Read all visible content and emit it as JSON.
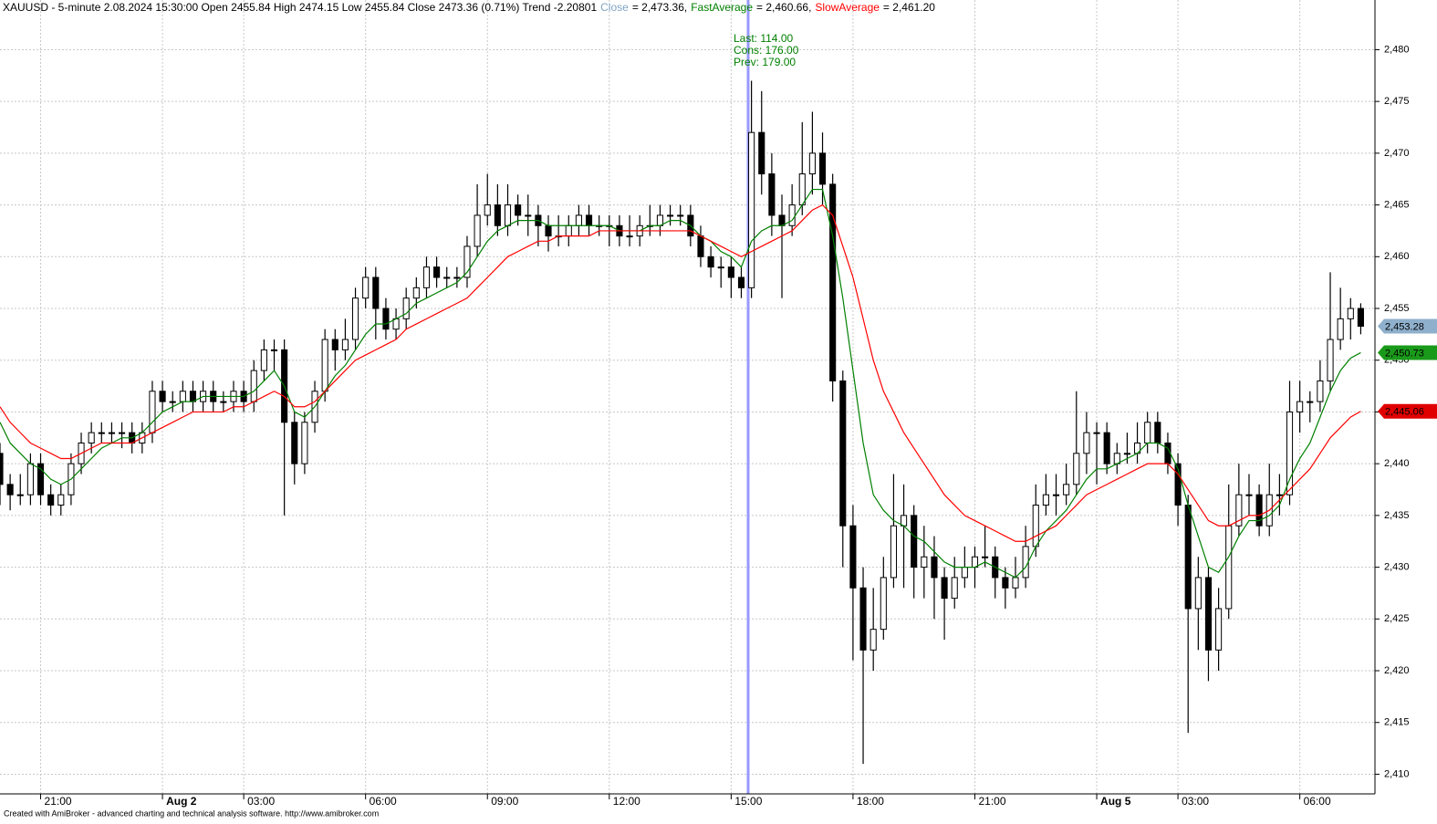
{
  "chart_data": {
    "type": "candlestick",
    "title": "XAUUSD - 5-minute 2.08.2024 15:30:00 Open 2455.84 High 2474.15 Low 2455.84 Close 2473.36 (0.71%) Trend -2.20801",
    "legend": [
      {
        "name": "Close",
        "text": "= 2,473.36,",
        "color": "#7fa4c4"
      },
      {
        "name": "FastAverage",
        "text": "= 2,460.66,",
        "color": "#008000"
      },
      {
        "name": "SlowAverage",
        "text": "= 2,461.20",
        "color": "#ff0000"
      }
    ],
    "annotation": [
      "Last: 114.00",
      "Cons: 176.00",
      "Prev: 179.00"
    ],
    "footer": "Created with AmiBroker - advanced charting and technical analysis software. http://www.amibroker.com",
    "xlim": [
      0,
      135.4
    ],
    "ylim": [
      2408.1,
      2484.8
    ],
    "xticks": [
      {
        "value": 4,
        "label": "21:00"
      },
      {
        "value": 16,
        "label": "Aug 2"
      },
      {
        "value": 24,
        "label": "03:00"
      },
      {
        "value": 36,
        "label": "06:00"
      },
      {
        "value": 48,
        "label": "09:00"
      },
      {
        "value": 60,
        "label": "12:00"
      },
      {
        "value": 72,
        "label": "15:00"
      },
      {
        "value": 84,
        "label": "18:00"
      },
      {
        "value": 96,
        "label": "21:00"
      },
      {
        "value": 108,
        "label": "Aug 5"
      },
      {
        "value": 116,
        "label": "03:00"
      },
      {
        "value": 128,
        "label": "06:00"
      }
    ],
    "yticks": [
      {
        "value": 2410,
        "label": "2,410"
      },
      {
        "value": 2415,
        "label": "2,415"
      },
      {
        "value": 2420,
        "label": "2,420"
      },
      {
        "value": 2425,
        "label": "2,425"
      },
      {
        "value": 2430,
        "label": "2,430"
      },
      {
        "value": 2435,
        "label": "2,435"
      },
      {
        "value": 2440,
        "label": "2,440"
      },
      {
        "value": 2445,
        "label": "2,445"
      },
      {
        "value": 2450,
        "label": "2,450"
      },
      {
        "value": 2455,
        "label": "2,455"
      },
      {
        "value": 2460,
        "label": "2,460"
      },
      {
        "value": 2465,
        "label": "2,465"
      },
      {
        "value": 2470,
        "label": "2,470"
      },
      {
        "value": 2475,
        "label": "2,475"
      },
      {
        "value": 2480,
        "label": "2,480"
      }
    ],
    "grid": true,
    "x": [
      0,
      1,
      2,
      3,
      4,
      5,
      6,
      7,
      8,
      9,
      10,
      11,
      12,
      13,
      14,
      15,
      16,
      17,
      18,
      19,
      20,
      21,
      22,
      23,
      24,
      25,
      26,
      27,
      28,
      29,
      30,
      31,
      32,
      33,
      34,
      35,
      36,
      37,
      38,
      39,
      40,
      41,
      42,
      43,
      44,
      45,
      46,
      47,
      48,
      49,
      50,
      51,
      52,
      53,
      54,
      55,
      56,
      57,
      58,
      59,
      60,
      61,
      62,
      63,
      64,
      65,
      66,
      67,
      68,
      69,
      70,
      71,
      72,
      73,
      74,
      75,
      76,
      77,
      78,
      79,
      80,
      81,
      82,
      83,
      84,
      85,
      86,
      87,
      88,
      89,
      90,
      91,
      92,
      93,
      94,
      95,
      96,
      97,
      98,
      99,
      100,
      101,
      102,
      103,
      104,
      105,
      106,
      107,
      108,
      109,
      110,
      111,
      112,
      113,
      114,
      115,
      116,
      117,
      118,
      119,
      120,
      121,
      122,
      123,
      124,
      125,
      126,
      127,
      128,
      129,
      130,
      131,
      132,
      133,
      134
    ],
    "ohlc": [
      [
        2441,
        2442,
        2436,
        2438
      ],
      [
        2438,
        2439,
        2435.5,
        2437
      ],
      [
        2437,
        2439,
        2436,
        2437
      ],
      [
        2437,
        2441,
        2436,
        2440
      ],
      [
        2440,
        2441,
        2436,
        2437
      ],
      [
        2437,
        2438,
        2435,
        2436
      ],
      [
        2436,
        2438,
        2435,
        2437
      ],
      [
        2437,
        2441,
        2436,
        2440
      ],
      [
        2440,
        2443,
        2439,
        2442
      ],
      [
        2442,
        2444,
        2441,
        2443
      ],
      [
        2443,
        2444,
        2442,
        2443
      ],
      [
        2443,
        2444,
        2442,
        2443
      ],
      [
        2443,
        2444,
        2441.5,
        2443
      ],
      [
        2443,
        2444,
        2441,
        2442
      ],
      [
        2442,
        2444,
        2441,
        2443
      ],
      [
        2443,
        2448,
        2442,
        2447
      ],
      [
        2447,
        2448,
        2445,
        2446
      ],
      [
        2446,
        2447,
        2445,
        2446
      ],
      [
        2446,
        2448,
        2445,
        2447
      ],
      [
        2447,
        2448,
        2445,
        2446
      ],
      [
        2446,
        2448,
        2445,
        2447
      ],
      [
        2447,
        2448,
        2445,
        2446
      ],
      [
        2446,
        2447,
        2445,
        2446
      ],
      [
        2446,
        2448,
        2445,
        2447
      ],
      [
        2447,
        2448,
        2445,
        2446
      ],
      [
        2446,
        2450,
        2445,
        2449
      ],
      [
        2449,
        2452,
        2448,
        2451
      ],
      [
        2451,
        2452,
        2449,
        2451
      ],
      [
        2451,
        2452,
        2435,
        2444
      ],
      [
        2444,
        2445,
        2438,
        2440
      ],
      [
        2440,
        2445,
        2439,
        2444
      ],
      [
        2444,
        2448,
        2443,
        2447
      ],
      [
        2447,
        2453,
        2446,
        2452
      ],
      [
        2452,
        2453,
        2449,
        2451
      ],
      [
        2451,
        2454,
        2450,
        2452
      ],
      [
        2452,
        2457,
        2451,
        2456
      ],
      [
        2456,
        2459,
        2455,
        2458
      ],
      [
        2458,
        2459,
        2452,
        2455
      ],
      [
        2455,
        2456,
        2452,
        2453
      ],
      [
        2453,
        2455,
        2452,
        2454
      ],
      [
        2454,
        2457,
        2453,
        2456
      ],
      [
        2456,
        2458,
        2455,
        2457
      ],
      [
        2457,
        2460,
        2456,
        2459
      ],
      [
        2459,
        2460,
        2457,
        2458
      ],
      [
        2458,
        2459,
        2457,
        2458
      ],
      [
        2458,
        2459,
        2457,
        2458
      ],
      [
        2458,
        2462,
        2457,
        2461
      ],
      [
        2461,
        2467,
        2460,
        2464
      ],
      [
        2464,
        2468,
        2463,
        2465
      ],
      [
        2465,
        2467,
        2462,
        2463
      ],
      [
        2463,
        2467,
        2462,
        2465
      ],
      [
        2465,
        2466,
        2463,
        2464
      ],
      [
        2464,
        2466,
        2462,
        2464
      ],
      [
        2464,
        2465,
        2461,
        2463
      ],
      [
        2463,
        2464,
        2460.5,
        2462
      ],
      [
        2462,
        2464,
        2461,
        2462
      ],
      [
        2462,
        2464,
        2461,
        2463
      ],
      [
        2463,
        2465,
        2462,
        2464
      ],
      [
        2464,
        2465,
        2462,
        2463
      ],
      [
        2463,
        2464,
        2462,
        2463
      ],
      [
        2463,
        2464,
        2461,
        2463
      ],
      [
        2463,
        2464,
        2461,
        2462
      ],
      [
        2462,
        2464,
        2461,
        2462
      ],
      [
        2462,
        2464,
        2461,
        2463
      ],
      [
        2463,
        2465,
        2462,
        2463
      ],
      [
        2463,
        2465,
        2462,
        2464
      ],
      [
        2464,
        2465,
        2463,
        2464
      ],
      [
        2464,
        2465,
        2463,
        2464
      ],
      [
        2464,
        2465,
        2461,
        2462
      ],
      [
        2462,
        2463,
        2459,
        2460
      ],
      [
        2460,
        2461,
        2458,
        2459
      ],
      [
        2459,
        2460,
        2457,
        2459
      ],
      [
        2459,
        2460,
        2456,
        2458
      ],
      [
        2458,
        2459,
        2456,
        2457
      ],
      [
        2457,
        2477,
        2456,
        2472
      ],
      [
        2472,
        2476,
        2466,
        2468
      ],
      [
        2468,
        2470,
        2462,
        2464
      ],
      [
        2464,
        2466,
        2456,
        2463
      ],
      [
        2463,
        2467,
        2462,
        2465
      ],
      [
        2465,
        2473,
        2464,
        2468
      ],
      [
        2468,
        2474,
        2466,
        2470
      ],
      [
        2470,
        2472,
        2465,
        2467
      ],
      [
        2467,
        2468,
        2446,
        2448
      ],
      [
        2448,
        2449,
        2430,
        2434
      ],
      [
        2434,
        2436,
        2421,
        2428
      ],
      [
        2428,
        2430,
        2411,
        2422
      ],
      [
        2422,
        2428,
        2420,
        2424
      ],
      [
        2424,
        2431,
        2423,
        2429
      ],
      [
        2429,
        2439,
        2428,
        2434
      ],
      [
        2434,
        2438,
        2428,
        2435
      ],
      [
        2435,
        2436,
        2427,
        2430
      ],
      [
        2430,
        2434,
        2427,
        2431
      ],
      [
        2431,
        2433,
        2425,
        2429
      ],
      [
        2429,
        2430,
        2423,
        2427
      ],
      [
        2427,
        2431,
        2426,
        2429
      ],
      [
        2429,
        2432,
        2428,
        2430
      ],
      [
        2430,
        2432,
        2428,
        2431
      ],
      [
        2431,
        2434,
        2430,
        2431
      ],
      [
        2431,
        2432,
        2427,
        2429
      ],
      [
        2429,
        2430,
        2426,
        2428
      ],
      [
        2428,
        2431,
        2427,
        2429
      ],
      [
        2429,
        2434,
        2428,
        2432
      ],
      [
        2432,
        2438,
        2431,
        2436
      ],
      [
        2436,
        2439,
        2435,
        2437
      ],
      [
        2437,
        2439,
        2435,
        2437
      ],
      [
        2437,
        2440,
        2436,
        2438
      ],
      [
        2438,
        2447,
        2437,
        2441
      ],
      [
        2441,
        2445,
        2439,
        2443
      ],
      [
        2443,
        2444,
        2438,
        2443
      ],
      [
        2443,
        2444,
        2439,
        2440
      ],
      [
        2440,
        2442,
        2439,
        2441
      ],
      [
        2441,
        2443,
        2440,
        2441
      ],
      [
        2441,
        2444,
        2440,
        2442
      ],
      [
        2442,
        2445,
        2441,
        2444
      ],
      [
        2444,
        2445,
        2441,
        2442
      ],
      [
        2442,
        2443,
        2439,
        2440
      ],
      [
        2440,
        2441,
        2434,
        2436
      ],
      [
        2436,
        2437,
        2414,
        2426
      ],
      [
        2426,
        2431,
        2422,
        2429
      ],
      [
        2429,
        2430,
        2419,
        2422
      ],
      [
        2422,
        2428,
        2420,
        2426
      ],
      [
        2426,
        2438,
        2425,
        2434
      ],
      [
        2434,
        2440,
        2433,
        2437
      ],
      [
        2437,
        2439,
        2435,
        2437
      ],
      [
        2437,
        2438,
        2433,
        2434
      ],
      [
        2434,
        2440,
        2433,
        2437
      ],
      [
        2437,
        2439,
        2435,
        2437
      ],
      [
        2437,
        2448,
        2436,
        2445
      ],
      [
        2445,
        2448,
        2443,
        2446
      ],
      [
        2446,
        2447,
        2444,
        2446
      ],
      [
        2446,
        2450,
        2445,
        2448
      ],
      [
        2448,
        2458.5,
        2447,
        2452
      ],
      [
        2452,
        2457,
        2451,
        2454
      ],
      [
        2454,
        2456,
        2452,
        2455
      ],
      [
        2455,
        2455.5,
        2452.5,
        2453.28
      ]
    ],
    "series": [
      {
        "name": "FastAverage",
        "color": "#008000",
        "values": [
          2444,
          2442,
          2441,
          2440,
          2439.5,
          2438.5,
          2438,
          2438.5,
          2439.5,
          2440.5,
          2441.5,
          2442,
          2442.5,
          2442.5,
          2443,
          2444,
          2445,
          2445.5,
          2446,
          2446,
          2446.5,
          2446.5,
          2446.5,
          2446.5,
          2446.5,
          2447,
          2448,
          2449,
          2447.5,
          2445,
          2444.5,
          2445.5,
          2447,
          2448.5,
          2449.5,
          2451,
          2452.5,
          2453.5,
          2453.5,
          2454,
          2454.5,
          2455.5,
          2456,
          2456.5,
          2457,
          2457.5,
          2458.5,
          2460,
          2461.5,
          2462.5,
          2463,
          2463.5,
          2463.5,
          2463.5,
          2463,
          2463,
          2463,
          2463,
          2463,
          2463,
          2463,
          2462.5,
          2462.5,
          2462.5,
          2463,
          2463,
          2463.5,
          2463.5,
          2463,
          2462,
          2461.5,
          2460.5,
          2460,
          2459,
          2461.5,
          2462.5,
          2463,
          2463,
          2463.5,
          2465,
          2466.5,
          2466.5,
          2462,
          2456,
          2449,
          2442,
          2437,
          2435.5,
          2434.5,
          2434,
          2433,
          2432.5,
          2431.5,
          2430.5,
          2430,
          2430,
          2430,
          2430.5,
          2430,
          2429.5,
          2429,
          2430,
          2432,
          2433.5,
          2434.5,
          2435.5,
          2437,
          2438.5,
          2439.5,
          2439.5,
          2440,
          2440.5,
          2441,
          2442,
          2442,
          2441.5,
          2439.5,
          2436,
          2433,
          2430,
          2429.5,
          2431,
          2433,
          2434.5,
          2434.5,
          2435,
          2436,
          2438.5,
          2440.5,
          2442,
          2444.5,
          2447,
          2449,
          2450.2,
          2450.73
        ]
      },
      {
        "name": "SlowAverage",
        "color": "#ff0000",
        "values": [
          2445.5,
          2444,
          2443,
          2442,
          2441.5,
          2441,
          2440.5,
          2440.5,
          2441,
          2441.5,
          2442,
          2442,
          2442,
          2442,
          2442.5,
          2443,
          2443.5,
          2444,
          2444.5,
          2445,
          2445,
          2445,
          2445,
          2445.5,
          2445.5,
          2446,
          2446.5,
          2447,
          2446.5,
          2445.5,
          2445.5,
          2446,
          2447,
          2448,
          2449,
          2450,
          2450.5,
          2451,
          2451.5,
          2452,
          2453,
          2453.5,
          2454,
          2454.5,
          2455,
          2455.5,
          2456,
          2457,
          2458,
          2459,
          2460,
          2460.5,
          2461,
          2461.5,
          2461.5,
          2462,
          2462,
          2462,
          2462,
          2462.5,
          2462.5,
          2462.5,
          2462.5,
          2462.5,
          2462.5,
          2462.5,
          2462.5,
          2462.5,
          2462.5,
          2462,
          2461.5,
          2461,
          2460.5,
          2460,
          2460.5,
          2461,
          2461.5,
          2462,
          2462.5,
          2463.5,
          2464.5,
          2465,
          2464,
          2461,
          2458,
          2454,
          2450,
          2447,
          2445,
          2443,
          2441.5,
          2440,
          2438.5,
          2437,
          2436,
          2435,
          2434.5,
          2434,
          2433.5,
          2433,
          2432.5,
          2432.5,
          2433,
          2433.5,
          2434,
          2435,
          2436,
          2437,
          2437.5,
          2438,
          2438.5,
          2439,
          2439.5,
          2440,
          2440,
          2440,
          2439,
          2437.5,
          2436,
          2434.5,
          2434,
          2434,
          2434.5,
          2435,
          2435,
          2435.5,
          2436.5,
          2437.5,
          2438.5,
          2439.5,
          2441,
          2442.5,
          2443.5,
          2444.5,
          2445.06
        ]
      }
    ],
    "markers": [
      {
        "value": 2453.28,
        "label": "2,453.28",
        "color": "#8fb0cc"
      },
      {
        "value": 2450.73,
        "label": "2,450.73",
        "color": "#1a9a1a"
      },
      {
        "value": 2445.06,
        "label": "2,445.06",
        "color": "#e00000"
      }
    ]
  }
}
